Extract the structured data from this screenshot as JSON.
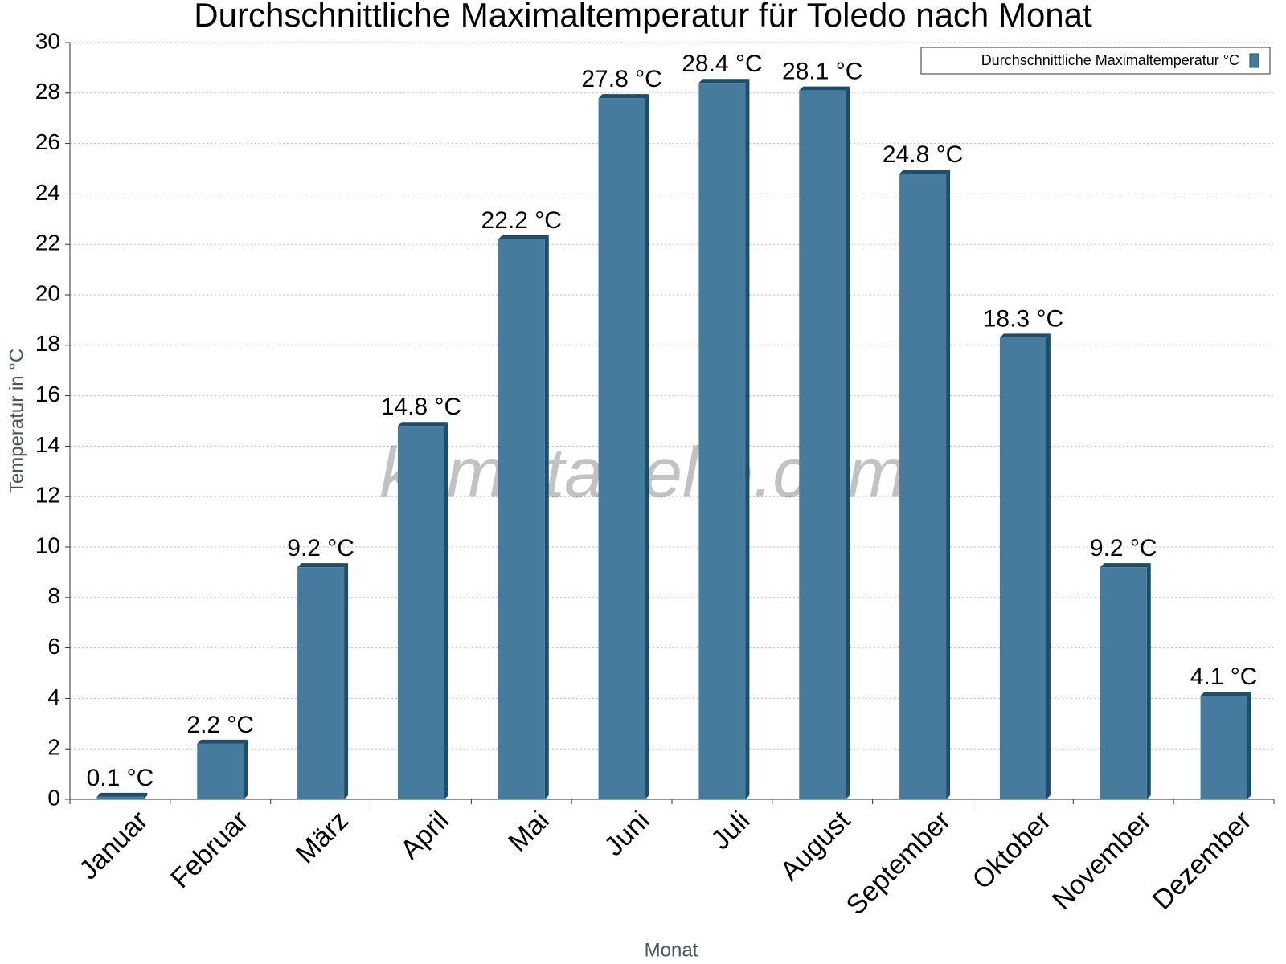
{
  "chart_data": {
    "type": "bar",
    "title": "Durchschnittliche Maximaltemperatur für Toledo nach Monat",
    "x_label": "Monat",
    "y_label": "Temperatur in °C",
    "watermark": "klimatabelle.com",
    "categories": [
      "Januar",
      "Februar",
      "März",
      "April",
      "Mai",
      "Juni",
      "Juli",
      "August",
      "September",
      "Oktober",
      "November",
      "Dezember"
    ],
    "series": [
      {
        "name": "Durchschnittliche Maximaltemperatur °C",
        "color": "#467b9e",
        "values": [
          0.1,
          2.2,
          9.2,
          14.8,
          22.2,
          27.8,
          28.4,
          28.1,
          24.8,
          18.3,
          9.2,
          4.1
        ],
        "value_labels": [
          "0.1 °C",
          "2.2 °C",
          "9.2 °C",
          "14.8 °C",
          "22.2 °C",
          "27.8 °C",
          "28.4 °C",
          "28.1 °C",
          "24.8 °C",
          "18.3 °C",
          "9.2 °C",
          "4.1 °C"
        ]
      }
    ],
    "ylim": [
      0,
      30
    ],
    "yticks": [
      0,
      2,
      4,
      6,
      8,
      10,
      12,
      14,
      16,
      18,
      20,
      22,
      24,
      26,
      28,
      30
    ],
    "grid": true,
    "legend": "top-right"
  }
}
